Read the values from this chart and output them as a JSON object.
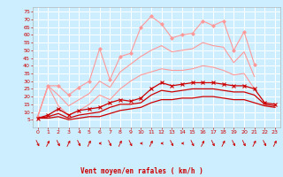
{
  "x": [
    0,
    1,
    2,
    3,
    4,
    5,
    6,
    7,
    8,
    9,
    10,
    11,
    12,
    13,
    14,
    15,
    16,
    17,
    18,
    19,
    20,
    21,
    22,
    23
  ],
  "series": [
    {
      "name": "max_rafales",
      "color": "#ff9999",
      "linewidth": 0.8,
      "marker": "D",
      "markersize": 1.8,
      "values": [
        7,
        27,
        27,
        21,
        26,
        30,
        51,
        31,
        46,
        48,
        65,
        72,
        67,
        58,
        60,
        61,
        69,
        66,
        69,
        50,
        62,
        41,
        null,
        null
      ]
    },
    {
      "name": "moy_rafales",
      "color": "#ff9999",
      "linewidth": 0.8,
      "marker": null,
      "markersize": 0,
      "values": [
        7,
        27,
        21,
        14,
        18,
        22,
        30,
        26,
        36,
        41,
        46,
        50,
        53,
        49,
        50,
        51,
        55,
        53,
        52,
        42,
        49,
        33,
        null,
        null
      ]
    },
    {
      "name": "min_rafales",
      "color": "#ff9999",
      "linewidth": 0.8,
      "marker": null,
      "markersize": 0,
      "values": [
        7,
        27,
        14,
        8,
        11,
        15,
        21,
        18,
        25,
        30,
        34,
        36,
        38,
        37,
        37,
        38,
        40,
        39,
        37,
        34,
        35,
        25,
        null,
        null
      ]
    },
    {
      "name": "max_vent",
      "color": "#cc0000",
      "linewidth": 0.9,
      "marker": "x",
      "markersize": 2.5,
      "values": [
        6,
        8,
        12,
        8,
        11,
        12,
        13,
        16,
        18,
        17,
        19,
        25,
        29,
        27,
        28,
        29,
        29,
        29,
        28,
        27,
        27,
        25,
        16,
        15
      ]
    },
    {
      "name": "moy_vent",
      "color": "#cc0000",
      "linewidth": 0.9,
      "marker": null,
      "markersize": 0,
      "values": [
        6,
        7,
        9,
        6,
        8,
        9,
        10,
        13,
        15,
        15,
        16,
        21,
        24,
        23,
        24,
        25,
        25,
        25,
        24,
        23,
        23,
        21,
        15,
        14
      ]
    },
    {
      "name": "min_vent",
      "color": "#cc0000",
      "linewidth": 0.9,
      "marker": null,
      "markersize": 0,
      "values": [
        6,
        6,
        7,
        5,
        6,
        7,
        7,
        9,
        11,
        12,
        13,
        16,
        18,
        18,
        19,
        19,
        20,
        20,
        19,
        18,
        18,
        16,
        14,
        13
      ]
    }
  ],
  "xlabel": "Vent moyen/en rafales ( km/h )",
  "xlim": [
    -0.5,
    23.5
  ],
  "ylim": [
    0,
    78
  ],
  "yticks": [
    5,
    10,
    15,
    20,
    25,
    30,
    35,
    40,
    45,
    50,
    55,
    60,
    65,
    70,
    75
  ],
  "xticks": [
    0,
    1,
    2,
    3,
    4,
    5,
    6,
    7,
    8,
    9,
    10,
    11,
    12,
    13,
    14,
    15,
    16,
    17,
    18,
    19,
    20,
    21,
    22,
    23
  ],
  "bg_color": "#cceeff",
  "grid_color": "#ffffff",
  "text_color": "#cc0000",
  "arrow_color": "#cc0000",
  "arrow_angles": [
    45,
    135,
    45,
    135,
    45,
    135,
    270,
    45,
    135,
    45,
    270,
    135,
    270,
    45,
    270,
    45,
    135,
    45,
    135,
    45,
    45,
    135,
    45,
    135
  ]
}
